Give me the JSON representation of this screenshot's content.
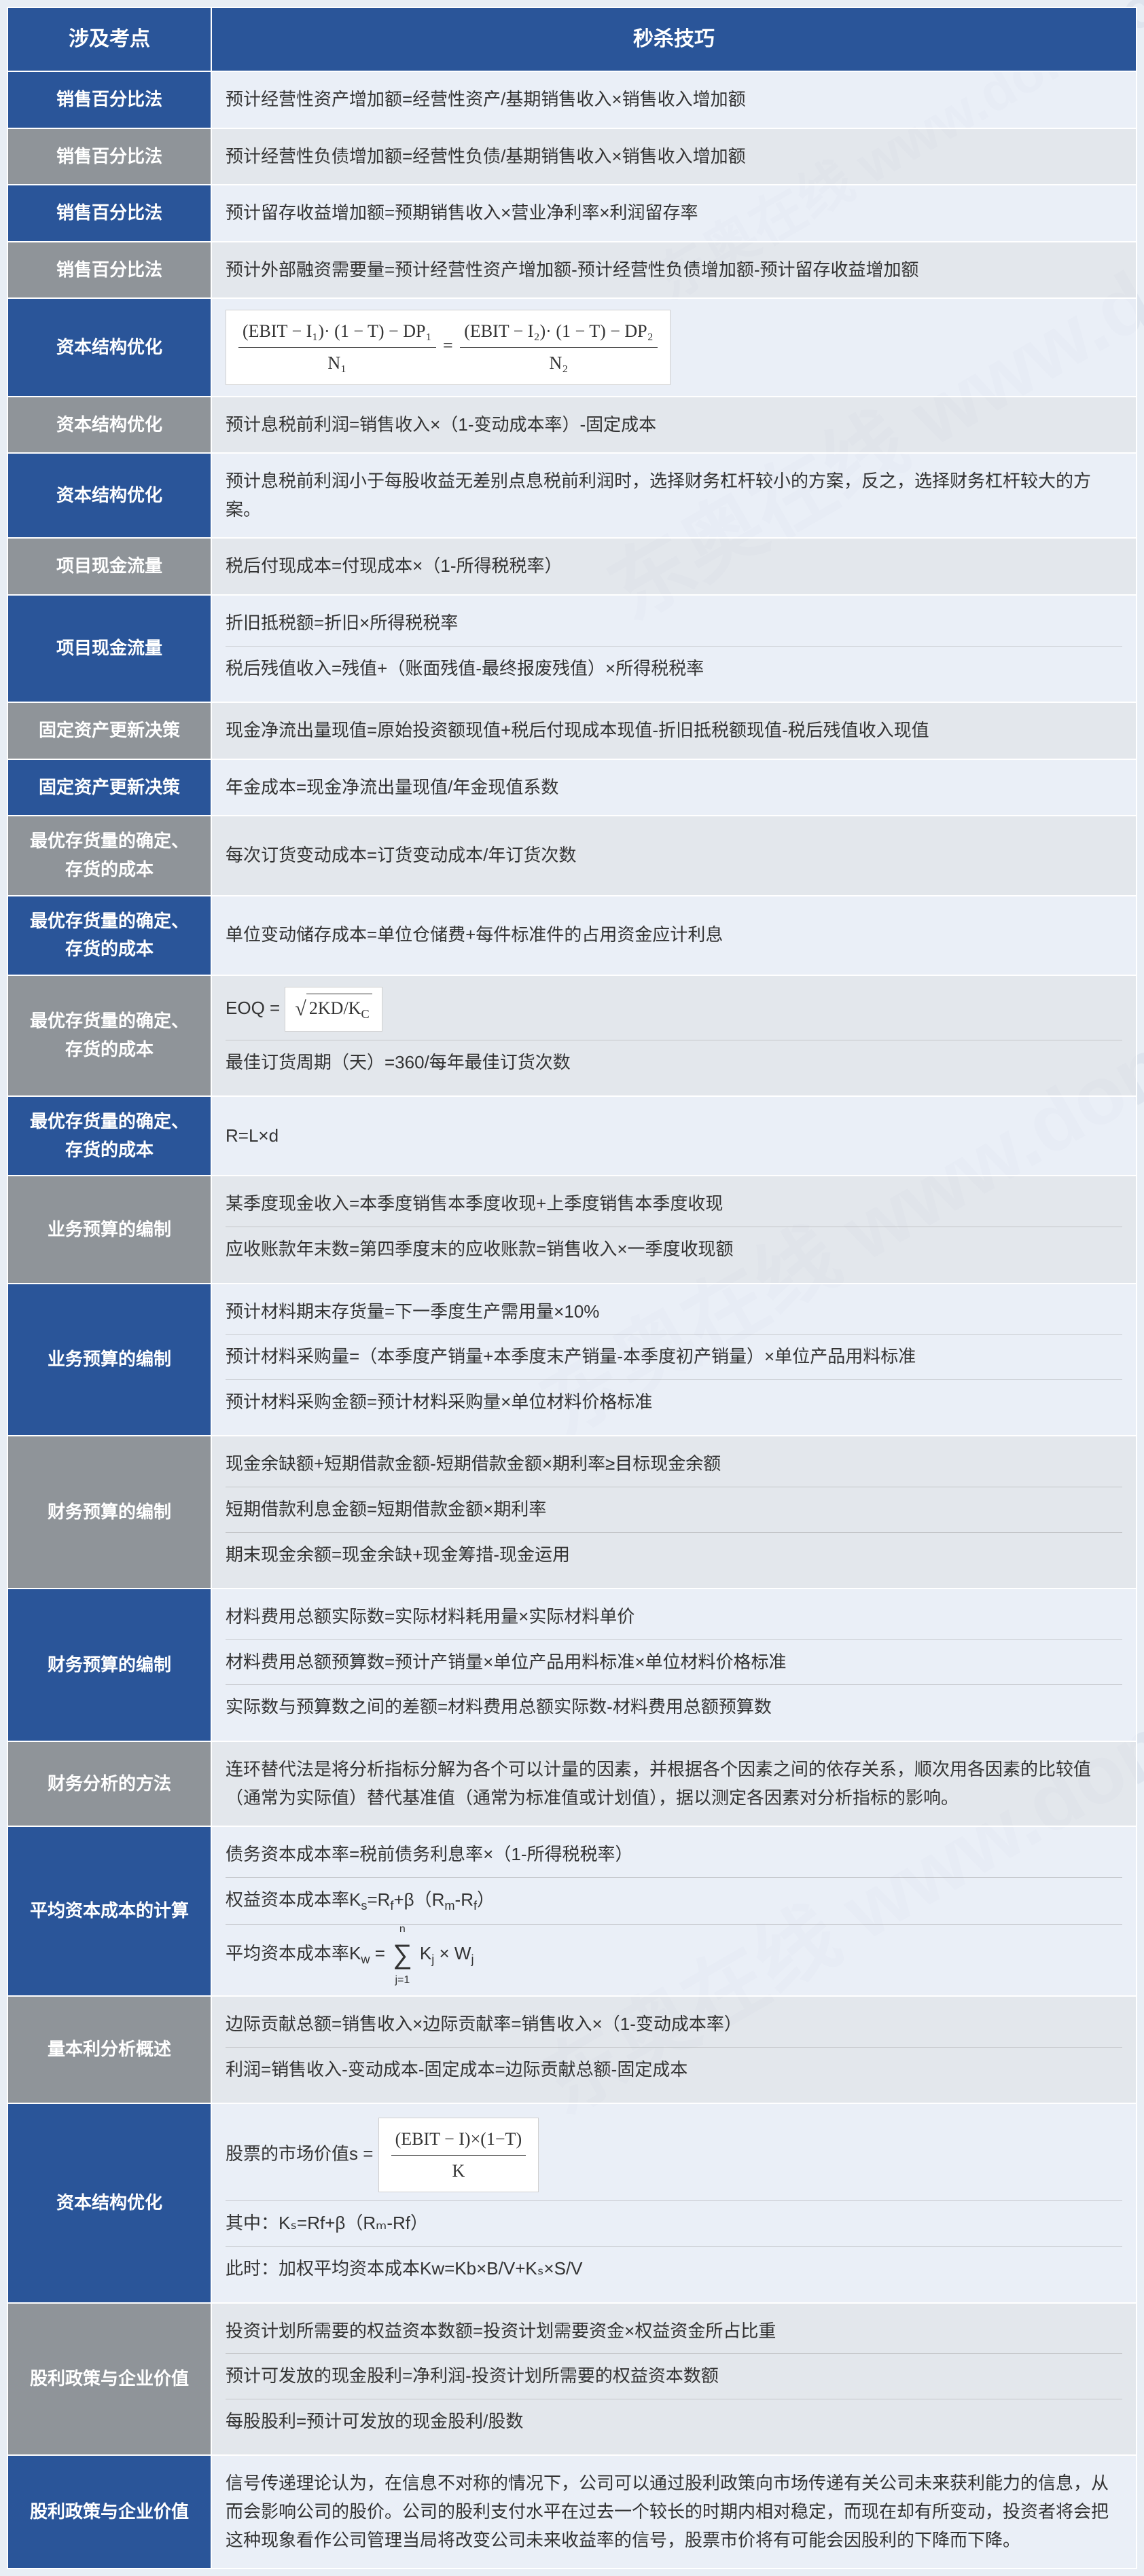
{
  "colors": {
    "header_bg": "#2a5599",
    "header_text": "#ffffff",
    "blue_cell": "#2a5599",
    "gray_cell": "#8f9499",
    "content_blue": "#ebf0f8",
    "content_gray": "#e1e4e8",
    "border": "#ffffff",
    "text": "#333333"
  },
  "layout": {
    "topic_col_width": 300,
    "font_size": 26,
    "header_font_size": 30
  },
  "headers": {
    "topic": "涉及考点",
    "technique": "秒杀技巧"
  },
  "watermark": "东奥在线 www.dongao.com",
  "rows": [
    {
      "color": "blue",
      "topic": "销售百分比法",
      "content": [
        "预计经营性资产增加额=经营性资产/基期销售收入×销售收入增加额"
      ]
    },
    {
      "color": "gray",
      "topic": "销售百分比法",
      "content": [
        "预计经营性负债增加额=经营性负债/基期销售收入×销售收入增加额"
      ]
    },
    {
      "color": "blue",
      "topic": "销售百分比法",
      "content": [
        "预计留存收益增加额=预期销售收入×营业净利率×利润留存率"
      ]
    },
    {
      "color": "gray",
      "topic": "销售百分比法",
      "content": [
        "预计外部融资需要量=预计经营性资产增加额-预计经营性负债增加额-预计留存收益增加额"
      ]
    },
    {
      "color": "blue",
      "topic": "资本结构优化",
      "formula": "cap_struct_1"
    },
    {
      "color": "gray",
      "topic": "资本结构优化",
      "content": [
        "预计息税前利润=销售收入×（1-变动成本率）-固定成本"
      ]
    },
    {
      "color": "blue",
      "topic": "资本结构优化",
      "content": [
        "预计息税前利润小于每股收益无差别点息税前利润时，选择财务杠杆较小的方案，反之，选择财务杠杆较大的方案。"
      ]
    },
    {
      "color": "gray",
      "topic": "项目现金流量",
      "content": [
        "税后付现成本=付现成本×（1-所得税税率）"
      ]
    },
    {
      "color": "blue",
      "topic": "项目现金流量",
      "content": [
        "折旧抵税额=折旧×所得税税率",
        "税后残值收入=残值+（账面残值-最终报废残值）×所得税税率"
      ]
    },
    {
      "color": "gray",
      "topic": "固定资产更新决策",
      "content": [
        "现金净流出量现值=原始投资额现值+税后付现成本现值-折旧抵税额现值-税后残值收入现值"
      ]
    },
    {
      "color": "blue",
      "topic": "固定资产更新决策",
      "content": [
        "年金成本=现金净流出量现值/年金现值系数"
      ]
    },
    {
      "color": "gray",
      "topic": "最优存货量的确定、存货的成本",
      "content": [
        "每次订货变动成本=订货变动成本/年订货次数"
      ]
    },
    {
      "color": "blue",
      "topic": "最优存货量的确定、存货的成本",
      "content": [
        "单位变动储存成本=单位仓储费+每件标准件的占用资金应计利息"
      ]
    },
    {
      "color": "gray",
      "topic": "最优存货量的确定、存货的成本",
      "formula": "eoq",
      "content2": [
        "最佳订货周期（天）=360/每年最佳订货次数"
      ]
    },
    {
      "color": "blue",
      "topic": "最优存货量的确定、存货的成本",
      "content": [
        "R=L×d"
      ]
    },
    {
      "color": "gray",
      "topic": "业务预算的编制",
      "content": [
        "某季度现金收入=本季度销售本季度收现+上季度销售本季度收现",
        "应收账款年末数=第四季度末的应收账款=销售收入×一季度收现额"
      ]
    },
    {
      "color": "blue",
      "topic": "业务预算的编制",
      "content": [
        "预计材料期末存货量=下一季度生产需用量×10%",
        "预计材料采购量=（本季度产销量+本季度末产销量-本季度初产销量）×单位产品用料标准",
        "预计材料采购金额=预计材料采购量×单位材料价格标准"
      ]
    },
    {
      "color": "gray",
      "topic": "财务预算的编制",
      "content": [
        "现金余缺额+短期借款金额-短期借款金额×期利率≥目标现金余额",
        "短期借款利息金额=短期借款金额×期利率",
        "期末现金余额=现金余缺+现金筹措-现金运用"
      ]
    },
    {
      "color": "blue",
      "topic": "财务预算的编制",
      "content": [
        "材料费用总额实际数=实际材料耗用量×实际材料单价",
        "材料费用总额预算数=预计产销量×单位产品用料标准×单位材料价格标准",
        "实际数与预算数之间的差额=材料费用总额实际数-材料费用总额预算数"
      ]
    },
    {
      "color": "gray",
      "topic": "财务分析的方法",
      "content": [
        "连环替代法是将分析指标分解为各个可以计量的因素，并根据各个因素之间的依存关系，顺次用各因素的比较值（通常为实际值）替代基准值（通常为标准值或计划值），据以测定各因素对分析指标的影响。"
      ]
    },
    {
      "color": "blue",
      "topic": "平均资本成本的计算",
      "formula": "wacc"
    },
    {
      "color": "gray",
      "topic": "量本利分析概述",
      "content": [
        "边际贡献总额=销售收入×边际贡献率=销售收入×（1-变动成本率）",
        "利润=销售收入-变动成本-固定成本=边际贡献总额-固定成本"
      ]
    },
    {
      "color": "blue",
      "topic": "资本结构优化",
      "formula": "stock_value"
    },
    {
      "color": "gray",
      "topic": "股利政策与企业价值",
      "content": [
        "投资计划所需要的权益资本数额=投资计划需要资金×权益资金所占比重",
        "预计可发放的现金股利=净利润-投资计划所需要的权益资本数额",
        "每股股利=预计可发放的现金股利/股数"
      ]
    },
    {
      "color": "blue",
      "topic": "股利政策与企业价值",
      "content": [
        "信号传递理论认为，在信息不对称的情况下，公司可以通过股利政策向市场传递有关公司未来获利能力的信息，从而会影响公司的股价。公司的股利支付水平在过去一个较长的时期内相对稳定，而现在却有所变动，投资者将会把这种现象看作公司管理当局将改变公司未来收益率的信号，股票市价将有可能会因股利的下降而下降。"
      ]
    }
  ],
  "formulas": {
    "cap_struct_1": {
      "lhs_num": "(EBIT − I₁)· (1 − T)  − DP₁",
      "lhs_den": "N₁",
      "rhs_num": "(EBIT − I₂)· (1 − T)  − DP₂",
      "rhs_den": "N₂"
    },
    "eoq": {
      "prefix": "EOQ = ",
      "radicand": "2KD/K",
      "radicand_sub": "C"
    },
    "wacc": {
      "line1": "债务资本成本率=税前债务利息率×（1-所得税税率）",
      "line2_pre": "权益资本成本率K",
      "line2_sub1": "s",
      "line2_mid": "=R",
      "line2_sub2": "f",
      "line2_rest": "+β（R",
      "line2_sub3": "m",
      "line2_mid2": "-R",
      "line2_sub4": "f",
      "line2_end": "）",
      "line3_pre": "平均资本成本率K",
      "line3_sub": "w",
      "line3_eq": " = ",
      "sum_top": "n",
      "sum_bot": "j=1",
      "line3_kj": "K",
      "line3_kjsub": "j",
      "line3_x": " × W",
      "line3_wjsub": "j"
    },
    "stock_value": {
      "line1_pre": "股票的市场价值s = ",
      "frac_num_a": "(EBIT − I)×(1−T)",
      "frac_den": "K",
      "line2": "其中：Kₛ=Rf+β（Rₘ-Rf）",
      "line3": "此时：加权平均资本成本Kw=Kb×B/V+Kₛ×S/V"
    }
  }
}
